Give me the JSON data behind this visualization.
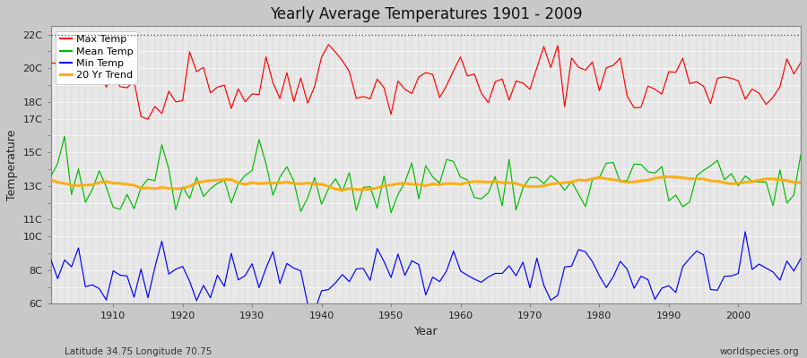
{
  "title": "Yearly Average Temperatures 1901 - 2009",
  "xlabel": "Year",
  "ylabel": "Temperature",
  "subtitle_left": "Latitude 34.75 Longitude 70.75",
  "subtitle_right": "worldspecies.org",
  "ylim": [
    6,
    22.5
  ],
  "start_year": 1901,
  "end_year": 2009,
  "plot_bg_color": "#e8e8e8",
  "fig_bg_color": "#d8d8d8",
  "max_temp_color": "#ff0000",
  "mean_temp_color": "#00bb00",
  "min_temp_color": "#0000ff",
  "trend_color": "#ffaa00",
  "legend_labels": [
    "Max Temp",
    "Mean Temp",
    "Min Temp",
    "20 Yr Trend"
  ],
  "dashed_line_y": 22,
  "ytick_show": [
    6,
    8,
    10,
    11,
    13,
    15,
    17,
    18,
    20,
    22
  ],
  "seed": 42
}
